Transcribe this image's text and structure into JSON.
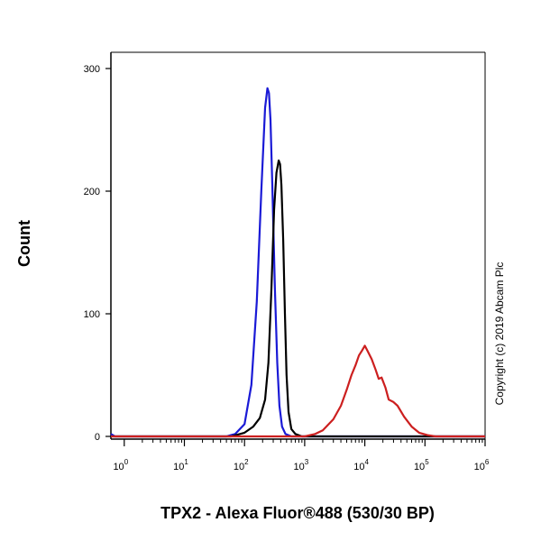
{
  "chart_data": {
    "type": "line",
    "title": "",
    "xlabel": "TPX2 - Alexa Fluor®488 (530/30 BP)",
    "ylabel": "Count",
    "x_scale": "log",
    "xlim": [
      0.6,
      1000000
    ],
    "ylim": [
      0,
      300
    ],
    "x_ticks": [
      {
        "value": 1,
        "base": "10",
        "exp": "0"
      },
      {
        "value": 10,
        "base": "10",
        "exp": "1"
      },
      {
        "value": 100,
        "base": "10",
        "exp": "2"
      },
      {
        "value": 1000,
        "base": "10",
        "exp": "3"
      },
      {
        "value": 10000,
        "base": "10",
        "exp": "4"
      },
      {
        "value": 100000,
        "base": "10",
        "exp": "5"
      },
      {
        "value": 1000000,
        "base": "10",
        "exp": "6"
      }
    ],
    "y_ticks": [
      0,
      100,
      200,
      300
    ],
    "grid": false,
    "legend": "none",
    "annotation": "Copyright (c) 2019 Abcam Plc",
    "series": [
      {
        "color": "#1a1ad6",
        "x": [
          0.6,
          0.7,
          10,
          50,
          70,
          100,
          130,
          160,
          190,
          220,
          240,
          255,
          270,
          290,
          320,
          350,
          380,
          420,
          480,
          600,
          1000,
          1000000
        ],
        "y": [
          2,
          0,
          0,
          0,
          2,
          10,
          42,
          110,
          200,
          268,
          284,
          280,
          258,
          205,
          120,
          60,
          25,
          8,
          2,
          0,
          0,
          0
        ]
      },
      {
        "color": "#000000",
        "x": [
          0.6,
          10,
          60,
          100,
          140,
          180,
          220,
          250,
          280,
          310,
          340,
          370,
          390,
          410,
          440,
          470,
          500,
          540,
          600,
          700,
          900,
          1200,
          1000000
        ],
        "y": [
          0,
          0,
          0,
          3,
          8,
          15,
          30,
          60,
          120,
          185,
          215,
          225,
          222,
          205,
          160,
          100,
          50,
          20,
          6,
          2,
          0,
          0,
          0
        ]
      },
      {
        "color": "#cc1f1f",
        "x": [
          0.6,
          1000,
          1500,
          2000,
          3000,
          4000,
          5000,
          6000,
          7000,
          8000,
          9000,
          10000,
          11000,
          13000,
          15000,
          17000,
          19000,
          22000,
          25000,
          30000,
          35000,
          45000,
          60000,
          80000,
          110000,
          150000,
          1000000
        ],
        "y": [
          0,
          0,
          2,
          5,
          14,
          25,
          38,
          50,
          58,
          66,
          70,
          74,
          70,
          63,
          55,
          47,
          48,
          40,
          30,
          28,
          25,
          16,
          8,
          3,
          1,
          0,
          0
        ]
      }
    ]
  }
}
